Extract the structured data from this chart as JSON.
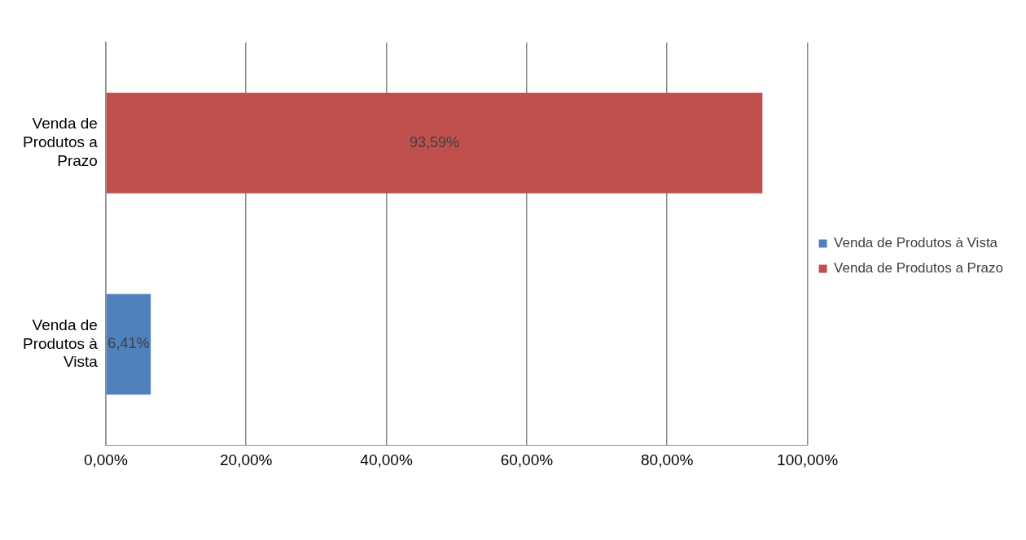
{
  "chart_data": {
    "type": "bar",
    "orientation": "horizontal",
    "stacked": true,
    "categories": [
      "Venda de Produtos a Prazo",
      "Venda de Produtos à Vista"
    ],
    "series": [
      {
        "name": "Venda de Produtos à Vista",
        "color": "#4f81bd",
        "values": [
          null,
          6.41
        ],
        "value_labels": [
          null,
          "6,41%"
        ]
      },
      {
        "name": "Venda de Produtos a Prazo",
        "color": "#c0504d",
        "values": [
          93.59,
          null
        ],
        "value_labels": [
          "93,59%",
          null
        ]
      }
    ],
    "xlim": [
      0,
      100
    ],
    "xticks": [
      {
        "value": 0,
        "label": "0,00%"
      },
      {
        "value": 20,
        "label": "20,00%"
      },
      {
        "value": 40,
        "label": "40,00%"
      },
      {
        "value": 60,
        "label": "60,00%"
      },
      {
        "value": 80,
        "label": "80,00%"
      },
      {
        "value": 100,
        "label": "100,00%"
      }
    ],
    "grid": "x",
    "legend": "right"
  }
}
